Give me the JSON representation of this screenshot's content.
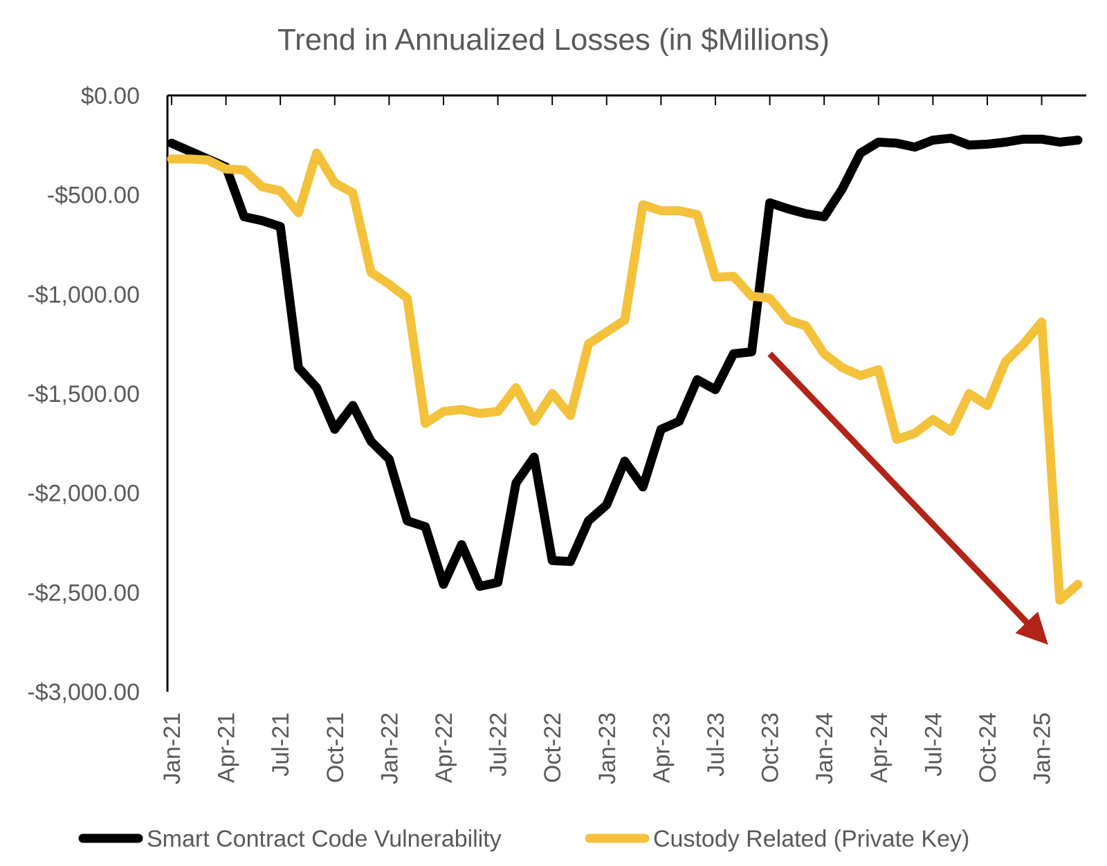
{
  "chart_data": {
    "type": "line",
    "title": "Trend in Annualized Losses (in $Millions)",
    "xlabel": "",
    "ylabel": "",
    "ylim": [
      -3000,
      0
    ],
    "yticks": [
      0,
      -500,
      -1000,
      -1500,
      -2000,
      -2500,
      -3000
    ],
    "ytick_labels": [
      "$0.00",
      "-$500.00",
      "-$1,000.00",
      "-$1,500.00",
      "-$2,000.00",
      "-$2,500.00",
      "-$3,000.00"
    ],
    "x_start": "Jan-21",
    "x": [
      "Jan-21",
      "Feb-21",
      "Mar-21",
      "Apr-21",
      "May-21",
      "Jun-21",
      "Jul-21",
      "Aug-21",
      "Sep-21",
      "Oct-21",
      "Nov-21",
      "Dec-21",
      "Jan-22",
      "Feb-22",
      "Mar-22",
      "Apr-22",
      "May-22",
      "Jun-22",
      "Jul-22",
      "Aug-22",
      "Sep-22",
      "Oct-22",
      "Nov-22",
      "Dec-22",
      "Jan-23",
      "Feb-23",
      "Mar-23",
      "Apr-23",
      "May-23",
      "Jun-23",
      "Jul-23",
      "Aug-23",
      "Sep-23",
      "Oct-23",
      "Nov-23",
      "Dec-23",
      "Jan-24",
      "Feb-24",
      "Mar-24",
      "Apr-24",
      "May-24",
      "Jun-24",
      "Jul-24",
      "Aug-24",
      "Sep-24",
      "Oct-24",
      "Nov-24",
      "Dec-24",
      "Jan-25",
      "Feb-25",
      "Mar-25"
    ],
    "x_tick_labels": [
      "Jan-21",
      "Apr-21",
      "Jul-21",
      "Oct-21",
      "Jan-22",
      "Apr-22",
      "Jul-22",
      "Oct-22",
      "Jan-23",
      "Apr-23",
      "Jul-23",
      "Oct-23",
      "Jan-24",
      "Apr-24",
      "Jul-24",
      "Oct-24",
      "Jan-25"
    ],
    "grid": false,
    "legend_position": "bottom",
    "series": [
      {
        "name": "Smart Contract Code Vulnerability",
        "color": "#000000",
        "values": [
          -240,
          -280,
          -320,
          -360,
          -610,
          -630,
          -660,
          -1370,
          -1470,
          -1680,
          -1560,
          -1740,
          -1830,
          -2140,
          -2170,
          -2460,
          -2260,
          -2470,
          -2450,
          -1950,
          -1820,
          -2340,
          -2345,
          -2140,
          -2060,
          -1840,
          -1970,
          -1680,
          -1640,
          -1430,
          -1480,
          -1300,
          -1290,
          -540,
          -570,
          -595,
          -610,
          -470,
          -290,
          -235,
          -240,
          -260,
          -225,
          -215,
          -250,
          -245,
          -235,
          -220,
          -220,
          -235,
          -225
        ]
      },
      {
        "name": "Custody Related (Private Key)",
        "color": "#F4C13B",
        "values": [
          -320,
          -320,
          -325,
          -370,
          -375,
          -460,
          -480,
          -590,
          -290,
          -440,
          -490,
          -890,
          -950,
          -1020,
          -1650,
          -1590,
          -1580,
          -1600,
          -1590,
          -1470,
          -1640,
          -1500,
          -1610,
          -1250,
          -1190,
          -1130,
          -550,
          -580,
          -580,
          -600,
          -915,
          -910,
          -1010,
          -1020,
          -1130,
          -1160,
          -1300,
          -1370,
          -1410,
          -1380,
          -1730,
          -1700,
          -1630,
          -1690,
          -1500,
          -1560,
          -1340,
          -1250,
          -1140,
          -2540,
          -2460
        ]
      }
    ],
    "annotations": [
      {
        "type": "arrow",
        "color": "#B22417",
        "from": {
          "x": "Oct-23",
          "y": -1300
        },
        "to": {
          "x": "Jan-25",
          "y": -2730
        }
      }
    ]
  }
}
